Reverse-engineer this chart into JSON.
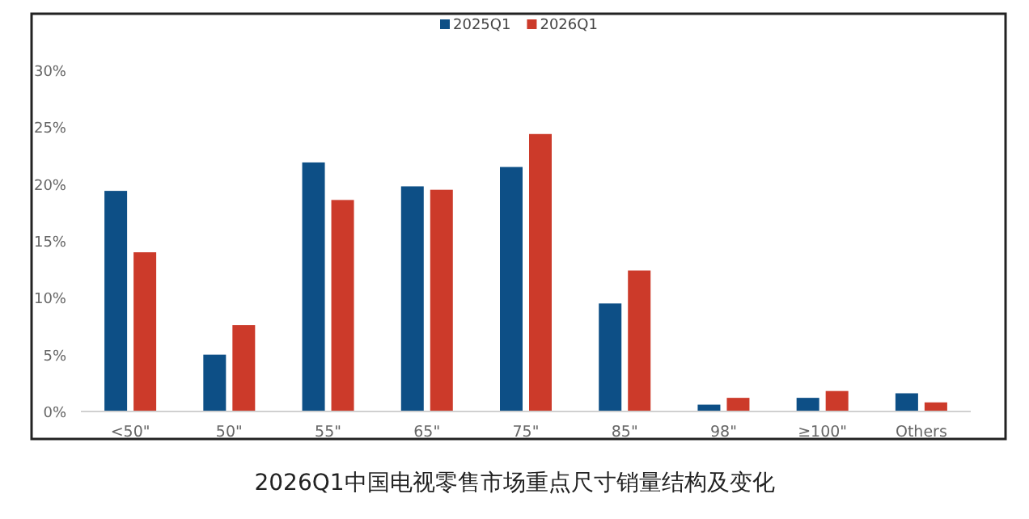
{
  "chart_data": {
    "type": "bar",
    "title": "2026Q1中国电视零售市场重点尺寸销量结构及变化",
    "categories": [
      "<50\"",
      "50\"",
      "55\"",
      "65\"",
      "75\"",
      "85\"",
      "98\"",
      "≥100\"",
      "Others"
    ],
    "series": [
      {
        "name": "2025Q1",
        "color": "#0d4f86",
        "values": [
          19.4,
          5.0,
          21.9,
          19.8,
          21.5,
          9.5,
          0.6,
          1.2,
          1.6
        ]
      },
      {
        "name": "2026Q1",
        "color": "#cc3a2a",
        "values": [
          14.0,
          7.6,
          18.6,
          19.5,
          24.4,
          12.4,
          1.2,
          1.8,
          0.8
        ]
      }
    ],
    "ylim": [
      0,
      30
    ],
    "yticks": [
      {
        "value": 0,
        "label": "0%"
      },
      {
        "value": 5,
        "label": "5%"
      },
      {
        "value": 10,
        "label": "10%"
      },
      {
        "value": 15,
        "label": "15%"
      },
      {
        "value": 20,
        "label": "20%"
      },
      {
        "value": 25,
        "label": "25%"
      },
      {
        "value": 30,
        "label": "30%"
      }
    ],
    "legend": "top",
    "grid": false
  }
}
